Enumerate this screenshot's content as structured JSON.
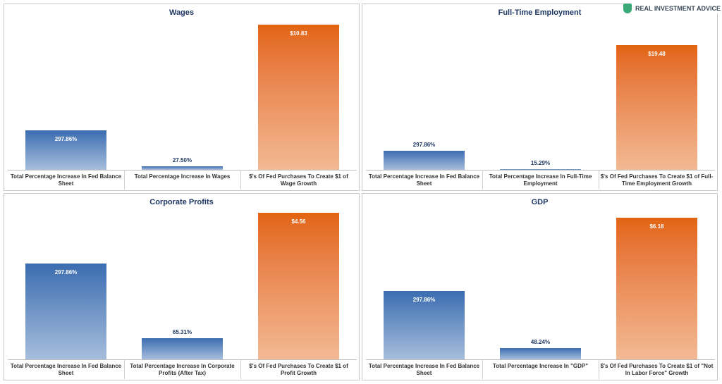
{
  "watermark": "REAL INVESTMENT ADVICE",
  "chart_data": [
    {
      "type": "bar",
      "title": "Wages",
      "categories": [
        "Total Percentage Increase In Fed Balance Sheet",
        "Total Percentage Increase In Wages",
        "$'s Of Fed Purchases To Create $1 of Wage Growth"
      ],
      "series": [
        {
          "color": "#3b6db0",
          "values": [
            297.86,
            27.5,
            null
          ],
          "value_labels": [
            "297.86%",
            "27.50%",
            null
          ]
        },
        {
          "color": "#e2640f",
          "axis": "y2",
          "values": [
            null,
            null,
            10.83
          ],
          "value_labels": [
            null,
            null,
            "$10.83"
          ]
        }
      ],
      "ylim": [
        0,
        1128
      ],
      "y2lim": [
        0,
        11.15
      ]
    },
    {
      "type": "bar",
      "title": "Full-Time Employment",
      "categories": [
        "Total Percentage Increase In Fed Balance Sheet",
        "Total Percentage Increase In Full-Time Employment",
        "$'s Of Fed Purchases To Create $1 of Full-Time Employment Growth"
      ],
      "series": [
        {
          "color": "#3b6db0",
          "values": [
            297.86,
            15.29,
            null
          ],
          "value_labels": [
            "297.86%",
            "15.29%",
            null
          ]
        },
        {
          "color": "#e2640f",
          "axis": "y2",
          "values": [
            null,
            null,
            19.48
          ],
          "value_labels": [
            null,
            null,
            "$19.48"
          ]
        }
      ],
      "ylim": [
        0,
        2339
      ],
      "y2lim": [
        0,
        23.3
      ]
    },
    {
      "type": "bar",
      "title": "Corporate Profits",
      "categories": [
        "Total Percentage Increase In Fed Balance Sheet",
        "Total Percentage Increase In Corporate Profits (After Tax)",
        "$'s Of Fed Purchases To Create $1 of Profit Growth"
      ],
      "series": [
        {
          "color": "#3b6db0",
          "values": [
            297.86,
            65.31,
            null
          ],
          "value_labels": [
            "297.86%",
            "65.31%",
            null
          ]
        },
        {
          "color": "#e2640f",
          "axis": "y2",
          "values": [
            null,
            null,
            4.56
          ],
          "value_labels": [
            null,
            null,
            "$4.56"
          ]
        }
      ],
      "ylim": [
        0,
        464
      ],
      "y2lim": [
        0,
        4.65
      ]
    },
    {
      "type": "bar",
      "title": "GDP",
      "categories": [
        "Total Percentage Increase In Fed Balance Sheet",
        "Total Percentage Increase In \"GDP\"",
        "$'s Of Fed Purchases To Create $1 of \"Not In Labor Force\" Growth"
      ],
      "series": [
        {
          "color": "#3b6db0",
          "values": [
            297.86,
            48.24,
            null
          ],
          "value_labels": [
            "297.86%",
            "48.24%",
            null
          ]
        },
        {
          "color": "#e2640f",
          "axis": "y2",
          "values": [
            null,
            null,
            6.18
          ],
          "value_labels": [
            null,
            null,
            "$6.18"
          ]
        }
      ],
      "ylim": [
        0,
        651
      ],
      "y2lim": [
        0,
        6.52
      ]
    }
  ]
}
